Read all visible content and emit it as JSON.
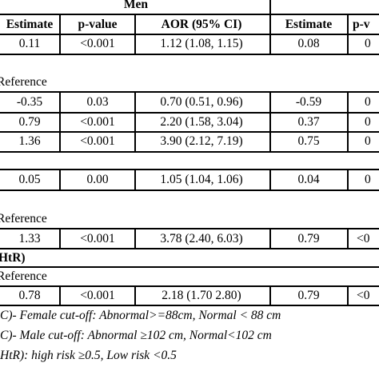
{
  "header": {
    "group_men": "Men",
    "columns": [
      "Estimate",
      "p-value",
      "AOR (95% CI)",
      "Estimate",
      "p-v"
    ]
  },
  "rows": [
    {
      "kind": "data",
      "cells": [
        "0.11",
        "<0.001",
        "1.12 (1.08, 1.15)",
        "0.08",
        "0"
      ]
    },
    {
      "kind": "label",
      "label": "Reference"
    },
    {
      "kind": "data",
      "cells": [
        "-0.35",
        "0.03",
        "0.70 (0.51, 0.96)",
        "-0.59",
        "0"
      ]
    },
    {
      "kind": "data",
      "cells": [
        "0.79",
        "<0.001",
        "2.20 (1.58, 3.04)",
        "0.37",
        "0"
      ]
    },
    {
      "kind": "data",
      "cells": [
        "1.36",
        "<0.001",
        "3.90 (2.12, 7.19)",
        "0.75",
        "0"
      ]
    },
    {
      "kind": "data",
      "cells": [
        "0.05",
        "0.00",
        "1.05 (1.04, 1.06)",
        "0.04",
        "0"
      ]
    },
    {
      "kind": "label",
      "label": "Reference"
    },
    {
      "kind": "data",
      "cells": [
        "1.33",
        "<0.001",
        "3.78 (2.40, 6.03)",
        "0.79",
        "<0"
      ]
    },
    {
      "kind": "label",
      "label": "HtR)"
    },
    {
      "kind": "label",
      "label": "Reference"
    },
    {
      "kind": "data",
      "cells": [
        "0.78",
        "<0.001",
        "2.18 (1.70 2.80)",
        "0.79",
        "<0"
      ]
    }
  ],
  "footnotes": [
    "C)- Female cut-off: Abnormal>=88cm, Normal < 88 cm",
    "C)- Male cut-off: Abnormal ≥102 cm, Normal<102 cm",
    "HtR): high risk ≥0.5, Low risk <0.5"
  ]
}
